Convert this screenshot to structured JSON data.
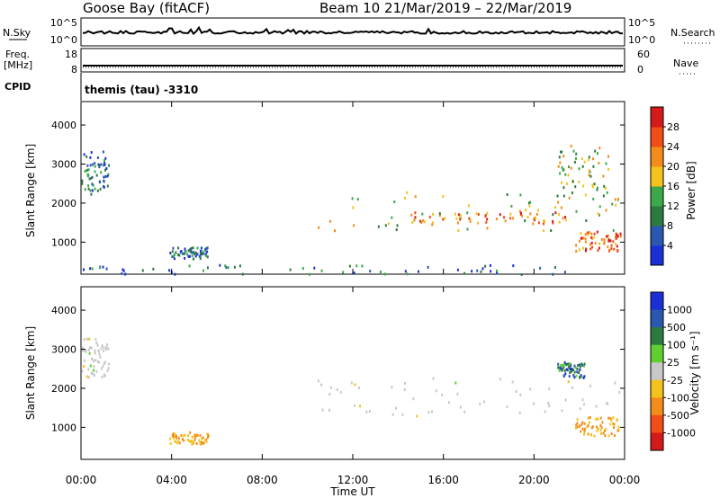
{
  "header": {
    "station": "Goose Bay (fitACF)",
    "beam_date": "Beam 10  21/Mar/2019 – 22/Mar/2019"
  },
  "summary_panels": {
    "nsky_label": "N.Sky",
    "nsky_ticks": [
      "10^5",
      "10^0"
    ],
    "nsearch_label": "N.Search",
    "nsearch_ticks": [
      "10^5",
      "10^0"
    ],
    "freq_label_1": "Freq.",
    "freq_label_2": "[MHz]",
    "freq_ticks": [
      "18",
      "8"
    ],
    "nave_label": "Nave",
    "nave_ticks": [
      "60",
      "0"
    ],
    "cpid_label": "CPID",
    "cpid_value": "themis (tau) -3310"
  },
  "colors": {
    "power_scale": [
      "#1a2fd6",
      "#2a58b0",
      "#2d7a3e",
      "#3aa84b",
      "#f2c21d",
      "#f28c1a",
      "#f04e16",
      "#d41a1a"
    ],
    "velocity_scale": [
      "#1a2fd6",
      "#2a58b0",
      "#2d7a3e",
      "#5fcf32",
      "#c8c8c8",
      "#f2c21d",
      "#f28c1a",
      "#f04e16",
      "#d41a1a"
    ],
    "ground_scatter": "#c8c8c8"
  },
  "chart_data": [
    {
      "type": "heatmap",
      "title": "Power",
      "ylabel": "Slant Range [km]",
      "xlabel": "Time UT",
      "xlim": [
        "00:00",
        "24:00"
      ],
      "ylim": [
        180,
        4600
      ],
      "x_ticks": [
        "00:00",
        "04:00",
        "08:00",
        "12:00",
        "16:00",
        "20:00",
        "00:00"
      ],
      "y_ticks": [
        1000,
        2000,
        3000,
        4000
      ],
      "colorbar": {
        "label": "Power [dB]",
        "range": [
          0,
          32
        ],
        "ticks": [
          4,
          8,
          12,
          16,
          20,
          24,
          28
        ]
      },
      "echo_regions": [
        {
          "t_start": 0.0,
          "t_end": 1.2,
          "range_start": 2250,
          "range_end": 3350,
          "level": "low"
        },
        {
          "t_start": 10.4,
          "t_end": 23.8,
          "range_start": 1300,
          "range_end": 2350,
          "level": "medium"
        },
        {
          "t_start": 14.5,
          "t_end": 21.5,
          "range_start": 1500,
          "range_end": 1800,
          "level": "high"
        },
        {
          "t_start": 21.8,
          "t_end": 23.8,
          "range_start": 800,
          "range_end": 1300,
          "level": "high"
        },
        {
          "t_start": 21.0,
          "t_end": 23.4,
          "range_start": 2200,
          "range_end": 3500,
          "level": "medium"
        },
        {
          "t_start": 3.9,
          "t_end": 5.6,
          "range_start": 600,
          "range_end": 900,
          "level": "low"
        },
        {
          "t_start": 0.0,
          "t_end": 22.0,
          "range_start": 200,
          "range_end": 450,
          "level": "low"
        }
      ]
    },
    {
      "type": "heatmap",
      "title": "Velocity",
      "ylabel": "Slant Range [km]",
      "xlabel": "Time UT",
      "xlim": [
        "00:00",
        "24:00"
      ],
      "ylim": [
        180,
        4600
      ],
      "x_ticks": [
        "00:00",
        "04:00",
        "08:00",
        "12:00",
        "16:00",
        "20:00",
        "00:00"
      ],
      "y_ticks": [
        1000,
        2000,
        3000,
        4000
      ],
      "colorbar": {
        "label": "Velocity [m s⁻¹]",
        "ticks": [
          1000,
          500,
          100,
          25,
          -25,
          -100,
          -500,
          -1000
        ]
      },
      "echo_regions": [
        {
          "t_start": 0.0,
          "t_end": 1.2,
          "range_start": 2300,
          "range_end": 3300,
          "level": "ground"
        },
        {
          "t_start": 10.4,
          "t_end": 23.8,
          "range_start": 1300,
          "range_end": 2300,
          "level": "ground"
        },
        {
          "t_start": 21.8,
          "t_end": 23.8,
          "range_start": 800,
          "range_end": 1300,
          "level": "negative"
        },
        {
          "t_start": 21.0,
          "t_end": 22.2,
          "range_start": 2300,
          "range_end": 2700,
          "level": "positive"
        },
        {
          "t_start": 3.9,
          "t_end": 5.6,
          "range_start": 600,
          "range_end": 900,
          "level": "negative"
        }
      ]
    }
  ]
}
